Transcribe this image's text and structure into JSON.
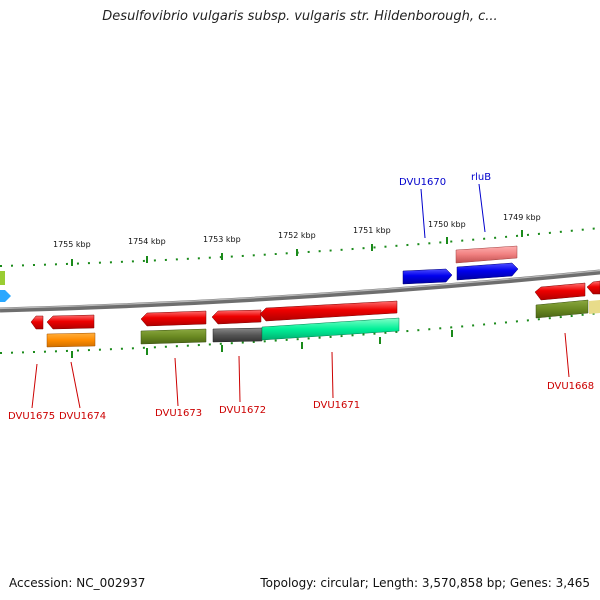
{
  "title": "Desulfovibrio vulgaris subsp. vulgaris str. Hildenborough, c...",
  "footer": {
    "accession": "Accession: NC_002937",
    "summary": "Topology: circular; Length: 3,570,858 bp; Genes: 3,465"
  },
  "ticks": {
    "kbp_1755": "1755 kbp",
    "kbp_1754": "1754 kbp",
    "kbp_1753": "1753 kbp",
    "kbp_1752": "1752 kbp",
    "kbp_1751": "1751 kbp",
    "kbp_1750": "1750 kbp",
    "kbp_1749": "1749 kbp"
  },
  "genes": {
    "dvu1675": "DVU1675",
    "dvu1674": "DVU1674",
    "dvu1673": "DVU1673",
    "dvu1672": "DVU1672",
    "dvu1671": "DVU1671",
    "dvu1670": "DVU1670",
    "rlub": "rluB",
    "dvu1668": "DVU1668"
  },
  "colors": {
    "red": "#e80000",
    "blue": "#0000e0",
    "olive": "#6b8a22",
    "orange": "#ff8c00",
    "teal": "#00e890",
    "salmon": "#f08080",
    "gray": "#555555",
    "label_red": "#cc0000",
    "label_blue": "#0000cc"
  }
}
